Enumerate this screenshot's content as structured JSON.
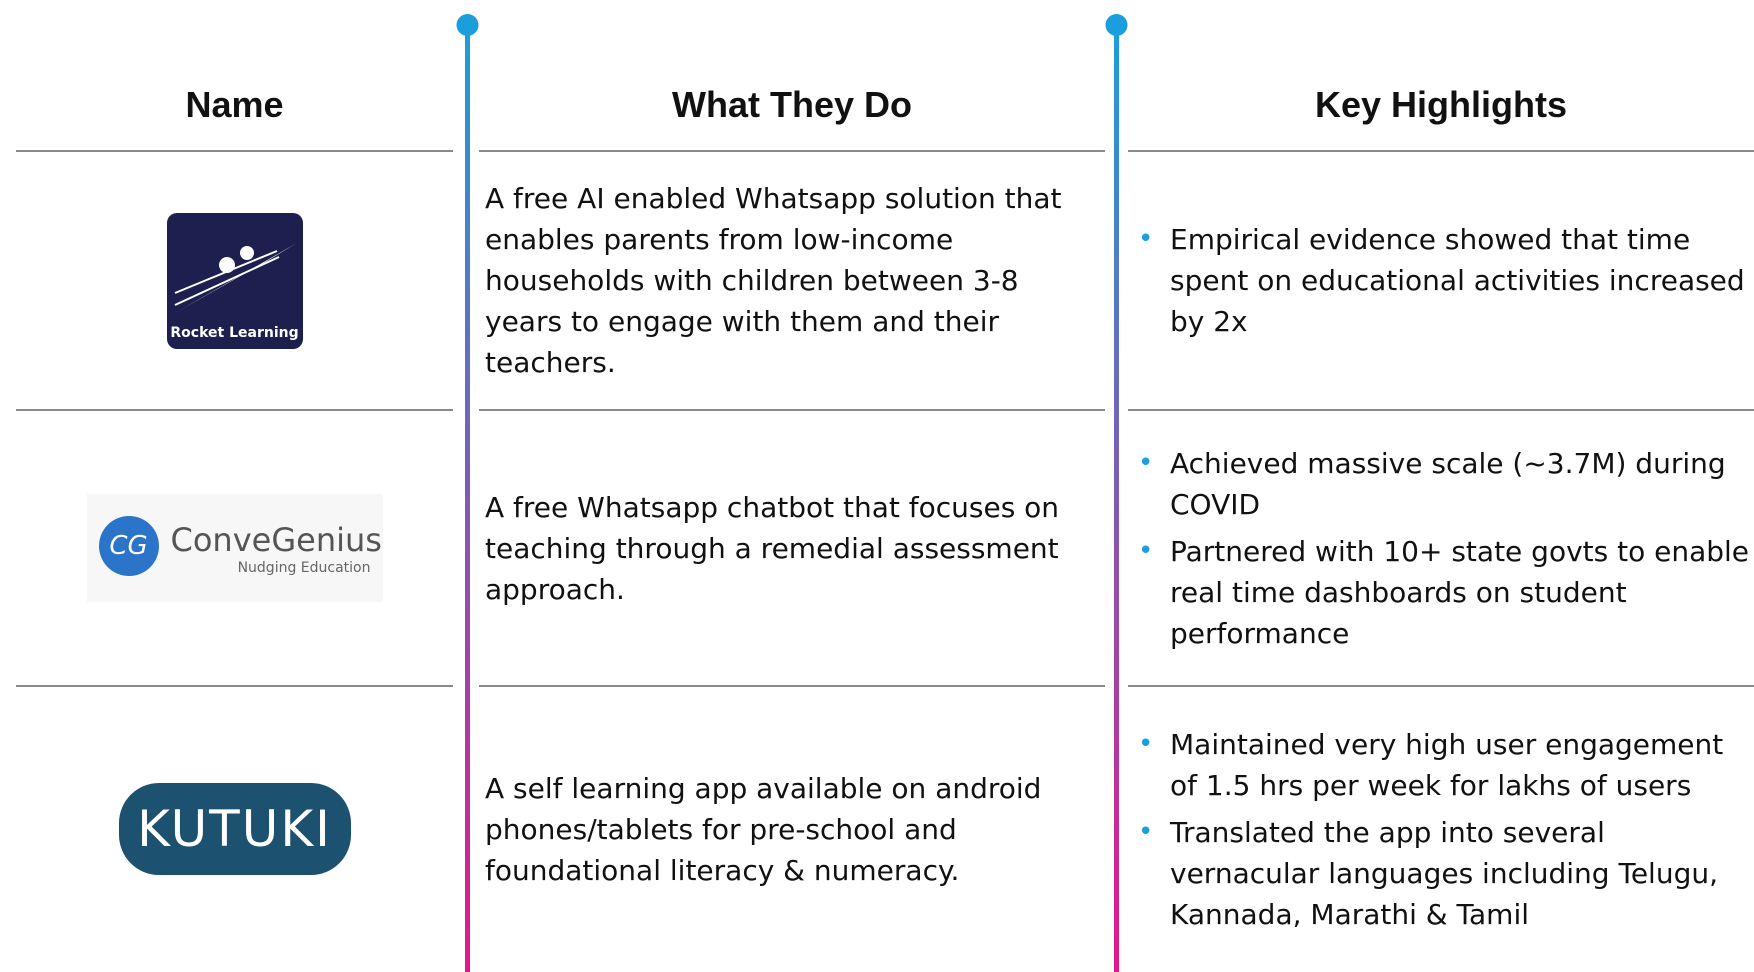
{
  "header": {
    "columns": [
      "Name",
      "What They Do",
      "Key Highlights"
    ]
  },
  "rows": [
    {
      "logo": {
        "text": "Rocket Learning"
      },
      "description": "A free AI enabled Whatsapp solution that enables parents from low-income households with children between 3-8 years to engage with them and their teachers.",
      "highlights": [
        "Empirical evidence showed that time spent on educational activities increased by 2x"
      ]
    },
    {
      "logo": {
        "badge": "CG",
        "text": "ConveGenius",
        "tagline": "Nudging Education"
      },
      "description": "A free Whatsapp chatbot that focuses on teaching through a remedial assessment approach.",
      "highlights": [
        "Achieved massive scale (~3.7M) during COVID",
        "Partnered with 10+ state govts to enable real time dashboards on student performance"
      ]
    },
    {
      "logo": {
        "text": "KUTUKI"
      },
      "description": "A self learning app available on android phones/tablets for pre-school and foundational literacy & numeracy.",
      "highlights": [
        "Maintained very high user engagement of 1.5 hrs per week for lakhs of users",
        "Translated the app into several vernacular languages including Telugu, Kannada, Marathi & Tamil"
      ]
    }
  ]
}
